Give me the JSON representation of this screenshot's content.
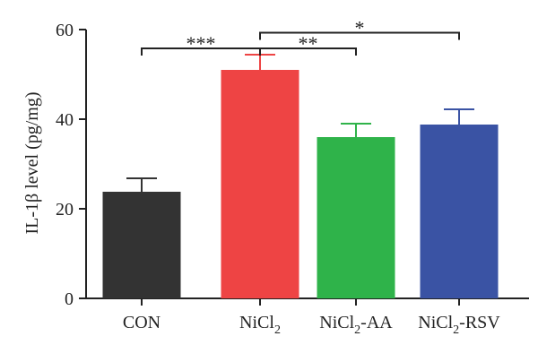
{
  "chart_data": {
    "type": "bar",
    "ylabel": "IL-1β level (pg/mg)",
    "ylim": [
      0,
      60
    ],
    "yticks": [
      0,
      20,
      40,
      60
    ],
    "categories": [
      "CON",
      "NiCl2",
      "NiCl2-AA",
      "NiCl2-RSV"
    ],
    "category_labels": [
      {
        "base": "CON",
        "sub": "",
        "rest": ""
      },
      {
        "base": "NiCl",
        "sub": "2",
        "rest": ""
      },
      {
        "base": "NiCl",
        "sub": "2",
        "rest": "-AA"
      },
      {
        "base": "NiCl",
        "sub": "2",
        "rest": "-RSV"
      }
    ],
    "values": [
      23.8,
      51.0,
      36.0,
      38.8
    ],
    "errors": [
      3.0,
      3.4,
      3.0,
      3.4
    ],
    "colors": [
      "#333333",
      "#ee4444",
      "#2fb34a",
      "#3a53a4"
    ],
    "significance": [
      {
        "from": 0,
        "to": 1,
        "label": "***",
        "y": 55.8
      },
      {
        "from": 1,
        "to": 2,
        "label": "**",
        "y": 55.8
      },
      {
        "from": 1,
        "to": 3,
        "label": "*",
        "y": 59.3
      }
    ]
  }
}
